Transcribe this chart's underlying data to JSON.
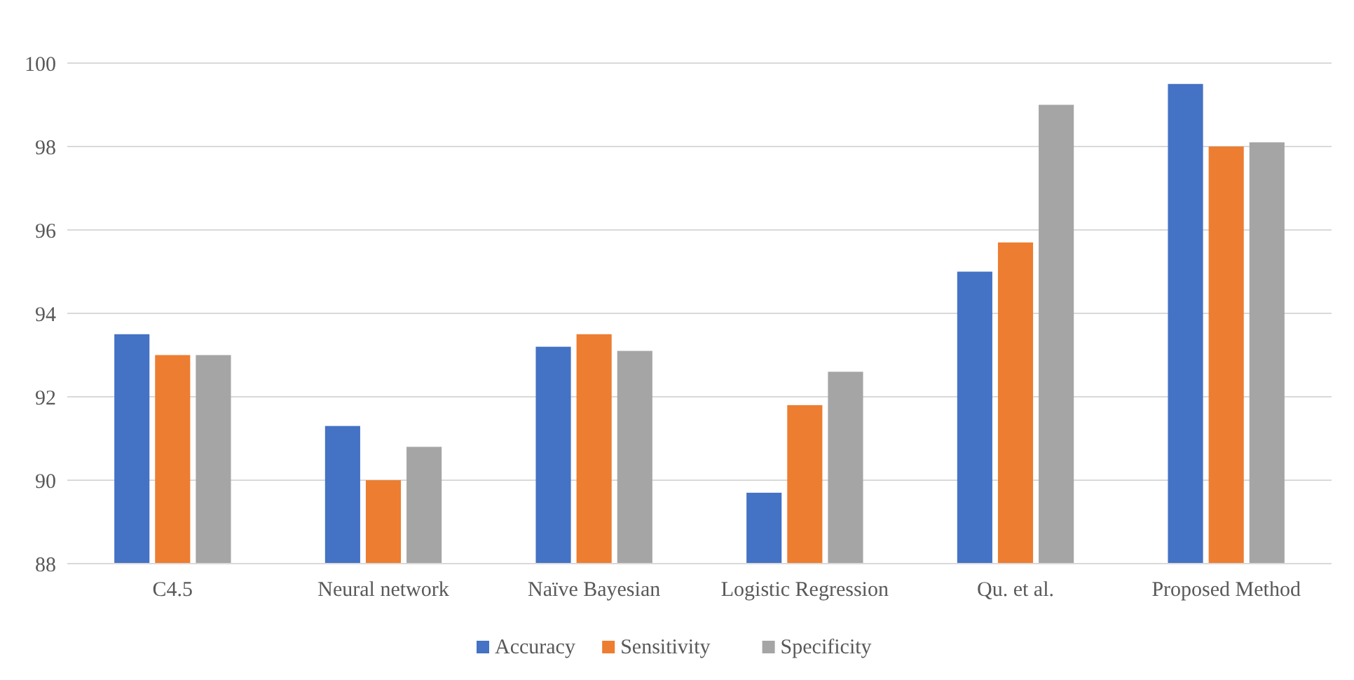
{
  "chart_data": {
    "type": "bar",
    "categories": [
      "C4.5",
      "Neural network",
      "Naïve Bayesian",
      "Logistic Regression",
      "Qu. et al.",
      "Proposed Method"
    ],
    "series": [
      {
        "name": "Accuracy",
        "color": "#4472c4",
        "values": [
          93.5,
          91.3,
          93.2,
          89.7,
          95.0,
          99.5
        ]
      },
      {
        "name": "Sensitivity",
        "color": "#ed7d31",
        "values": [
          93.0,
          90.0,
          93.5,
          91.8,
          95.7,
          98.0
        ]
      },
      {
        "name": "Specificity",
        "color": "#a5a5a5",
        "values": [
          93.0,
          90.8,
          93.1,
          92.6,
          99.0,
          98.1
        ]
      }
    ],
    "ylim": [
      88,
      100
    ],
    "yticks": [
      88,
      90,
      92,
      94,
      96,
      98,
      100
    ],
    "grid": "y",
    "legend": "bottom"
  }
}
